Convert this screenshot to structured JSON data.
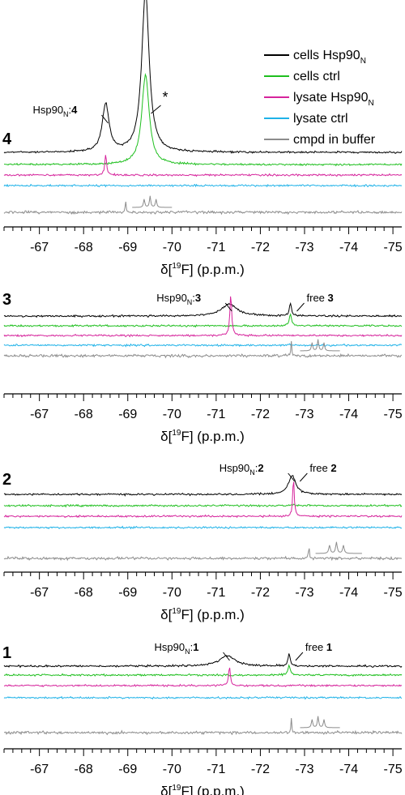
{
  "colors": {
    "cells_hsp90n": "#000000",
    "cells_ctrl": "#1fbf1f",
    "lysate_hsp90n": "#d6249c",
    "lysate_ctrl": "#1fb2e8",
    "cmpd_in_buffer": "#8c8c8c"
  },
  "legend": {
    "placement": "top-right",
    "entries": [
      {
        "label": "cells Hsp90",
        "sub": "N",
        "color_key": "cells_hsp90n"
      },
      {
        "label": "cells ctrl",
        "sub": "",
        "color_key": "cells_ctrl"
      },
      {
        "label": "lysate Hsp90",
        "sub": "N",
        "color_key": "lysate_hsp90n"
      },
      {
        "label": "lysate ctrl",
        "sub": "",
        "color_key": "lysate_ctrl"
      },
      {
        "label": "cmpd in buffer",
        "sub": "",
        "color_key": "cmpd_in_buffer"
      }
    ]
  },
  "chart_data": [
    {
      "type": "line",
      "panel_label": "4",
      "xlabel": "δ[19F] (p.p.m.)",
      "xlim": [
        -66.2,
        -75.2
      ],
      "x_reversed": true,
      "tick_labels": [
        "-67",
        "-68",
        "-69",
        "-70",
        "-71",
        "-72",
        "-73",
        "-74",
        "-75"
      ],
      "series": [
        {
          "name": "cells Hsp90N",
          "color_key": "cells_hsp90n",
          "baseline": 0.0,
          "peaks": [
            {
              "x": -68.5,
              "h": 0.28,
              "w": 0.09
            },
            {
              "x": -69.4,
              "h": 0.95,
              "w": 0.1
            }
          ]
        },
        {
          "name": "cells ctrl",
          "color_key": "cells_ctrl",
          "baseline": 0.0,
          "peaks": [
            {
              "x": -69.4,
              "h": 0.8,
              "w": 0.1
            }
          ]
        },
        {
          "name": "lysate Hsp90N",
          "color_key": "lysate_hsp90n",
          "baseline": 0.0,
          "peaks": [
            {
              "x": -68.5,
              "h": 0.5,
              "w": 0.025
            }
          ]
        },
        {
          "name": "lysate ctrl",
          "color_key": "lysate_ctrl",
          "baseline": 0.0,
          "peaks": []
        },
        {
          "name": "cmpd in buffer",
          "color_key": "cmpd_in_buffer",
          "baseline": 0.0,
          "peaks": [
            {
              "x": -68.95,
              "h": 0.6,
              "w": 0.01
            }
          ],
          "multiplet_inset": {
            "x_start": -69.1,
            "x_end": -70.0
          }
        }
      ],
      "annotations": [
        {
          "text": "Hsp90",
          "sub": "N",
          "bold": "4",
          "x": -68.5
        },
        {
          "text": "*",
          "x": -69.6
        }
      ]
    },
    {
      "type": "line",
      "panel_label": "3",
      "xlabel": "δ[19F] (p.p.m.)",
      "xlim": [
        -66.2,
        -75.2
      ],
      "x_reversed": true,
      "tick_labels": [
        "-67",
        "-68",
        "-69",
        "-70",
        "-71",
        "-72",
        "-73",
        "-74",
        "-75"
      ],
      "series": [
        {
          "name": "cells Hsp90N",
          "color_key": "cells_hsp90n",
          "baseline": 0.0,
          "peaks": [
            {
              "x": -71.3,
              "h": 0.35,
              "w": 0.22
            },
            {
              "x": -72.68,
              "h": 0.35,
              "w": 0.03
            }
          ]
        },
        {
          "name": "cells ctrl",
          "color_key": "cells_ctrl",
          "baseline": 0.0,
          "peaks": [
            {
              "x": -72.68,
              "h": 0.35,
              "w": 0.03
            }
          ]
        },
        {
          "name": "lysate Hsp90N",
          "color_key": "lysate_hsp90n",
          "baseline": 0.0,
          "peaks": [
            {
              "x": -71.33,
              "h": 1.0,
              "w": 0.025
            }
          ]
        },
        {
          "name": "lysate ctrl",
          "color_key": "lysate_ctrl",
          "baseline": 0.0,
          "peaks": [
            {
              "x": -72.68,
              "h": 0.08,
              "w": 0.04
            }
          ]
        },
        {
          "name": "cmpd in buffer",
          "color_key": "cmpd_in_buffer",
          "baseline": 0.0,
          "peaks": [
            {
              "x": -72.7,
              "h": 0.6,
              "w": 0.01
            }
          ],
          "multiplet_inset": {
            "x_start": -72.9,
            "x_end": -73.8
          }
        }
      ],
      "annotations": [
        {
          "text": "Hsp90",
          "sub": "N",
          "bold": "3",
          "x": -71.3
        },
        {
          "text": "free ",
          "bold": "3",
          "x": -72.68
        }
      ]
    },
    {
      "type": "line",
      "panel_label": "2",
      "xlabel": "δ[19F] (p.p.m.)",
      "xlim": [
        -66.2,
        -75.2
      ],
      "x_reversed": true,
      "tick_labels": [
        "-67",
        "-68",
        "-69",
        "-70",
        "-71",
        "-72",
        "-73",
        "-74",
        "-75"
      ],
      "series": [
        {
          "name": "cells Hsp90N",
          "color_key": "cells_hsp90n",
          "baseline": 0.0,
          "peaks": [
            {
              "x": -72.72,
              "h": 0.55,
              "w": 0.1
            }
          ]
        },
        {
          "name": "cells ctrl",
          "color_key": "cells_ctrl",
          "baseline": 0.0,
          "peaks": [
            {
              "x": -72.75,
              "h": 0.1,
              "w": 0.03
            },
            {
              "x": -73.1,
              "h": 0.06,
              "w": 0.03
            }
          ]
        },
        {
          "name": "lysate Hsp90N",
          "color_key": "lysate_hsp90n",
          "baseline": 0.0,
          "peaks": [
            {
              "x": -72.75,
              "h": 0.95,
              "w": 0.02
            }
          ]
        },
        {
          "name": "lysate ctrl",
          "color_key": "lysate_ctrl",
          "baseline": 0.0,
          "peaks": []
        },
        {
          "name": "cmpd in buffer",
          "color_key": "cmpd_in_buffer",
          "baseline": 0.0,
          "peaks": [
            {
              "x": -73.1,
              "h": 0.6,
              "w": 0.01
            }
          ],
          "multiplet_inset": {
            "x_start": -73.25,
            "x_end": -74.3
          }
        }
      ],
      "annotations": [
        {
          "text": "Hsp90",
          "sub": "N",
          "bold": "2",
          "x": -72.72
        },
        {
          "text": "free ",
          "bold": "2",
          "x": -72.75
        }
      ]
    },
    {
      "type": "line",
      "panel_label": "1",
      "xlabel": "δ[19F] (p.p.m.)",
      "xlim": [
        -66.2,
        -75.2
      ],
      "x_reversed": true,
      "tick_labels": [
        "-67",
        "-68",
        "-69",
        "-70",
        "-71",
        "-72",
        "-73",
        "-74",
        "-75"
      ],
      "series": [
        {
          "name": "cells Hsp90N",
          "color_key": "cells_hsp90n",
          "baseline": 0.0,
          "peaks": [
            {
              "x": -71.25,
              "h": 0.35,
              "w": 0.22
            },
            {
              "x": -72.65,
              "h": 0.42,
              "w": 0.03
            }
          ]
        },
        {
          "name": "cells ctrl",
          "color_key": "cells_ctrl",
          "baseline": 0.0,
          "peaks": [
            {
              "x": -72.65,
              "h": 0.42,
              "w": 0.03
            }
          ]
        },
        {
          "name": "lysate Hsp90N",
          "color_key": "lysate_hsp90n",
          "baseline": 0.0,
          "peaks": [
            {
              "x": -71.3,
              "h": 0.6,
              "w": 0.025
            }
          ]
        },
        {
          "name": "lysate ctrl",
          "color_key": "lysate_ctrl",
          "baseline": 0.0,
          "peaks": [
            {
              "x": -72.65,
              "h": 0.08,
              "w": 0.04
            }
          ]
        },
        {
          "name": "cmpd in buffer",
          "color_key": "cmpd_in_buffer",
          "baseline": 0.0,
          "peaks": [
            {
              "x": -72.7,
              "h": 0.6,
              "w": 0.01
            }
          ],
          "multiplet_inset": {
            "x_start": -72.9,
            "x_end": -73.8
          }
        }
      ],
      "annotations": [
        {
          "text": "Hsp90",
          "sub": "N",
          "bold": "1",
          "x": -71.25
        },
        {
          "text": "free ",
          "bold": "1",
          "x": -72.65
        }
      ]
    }
  ]
}
